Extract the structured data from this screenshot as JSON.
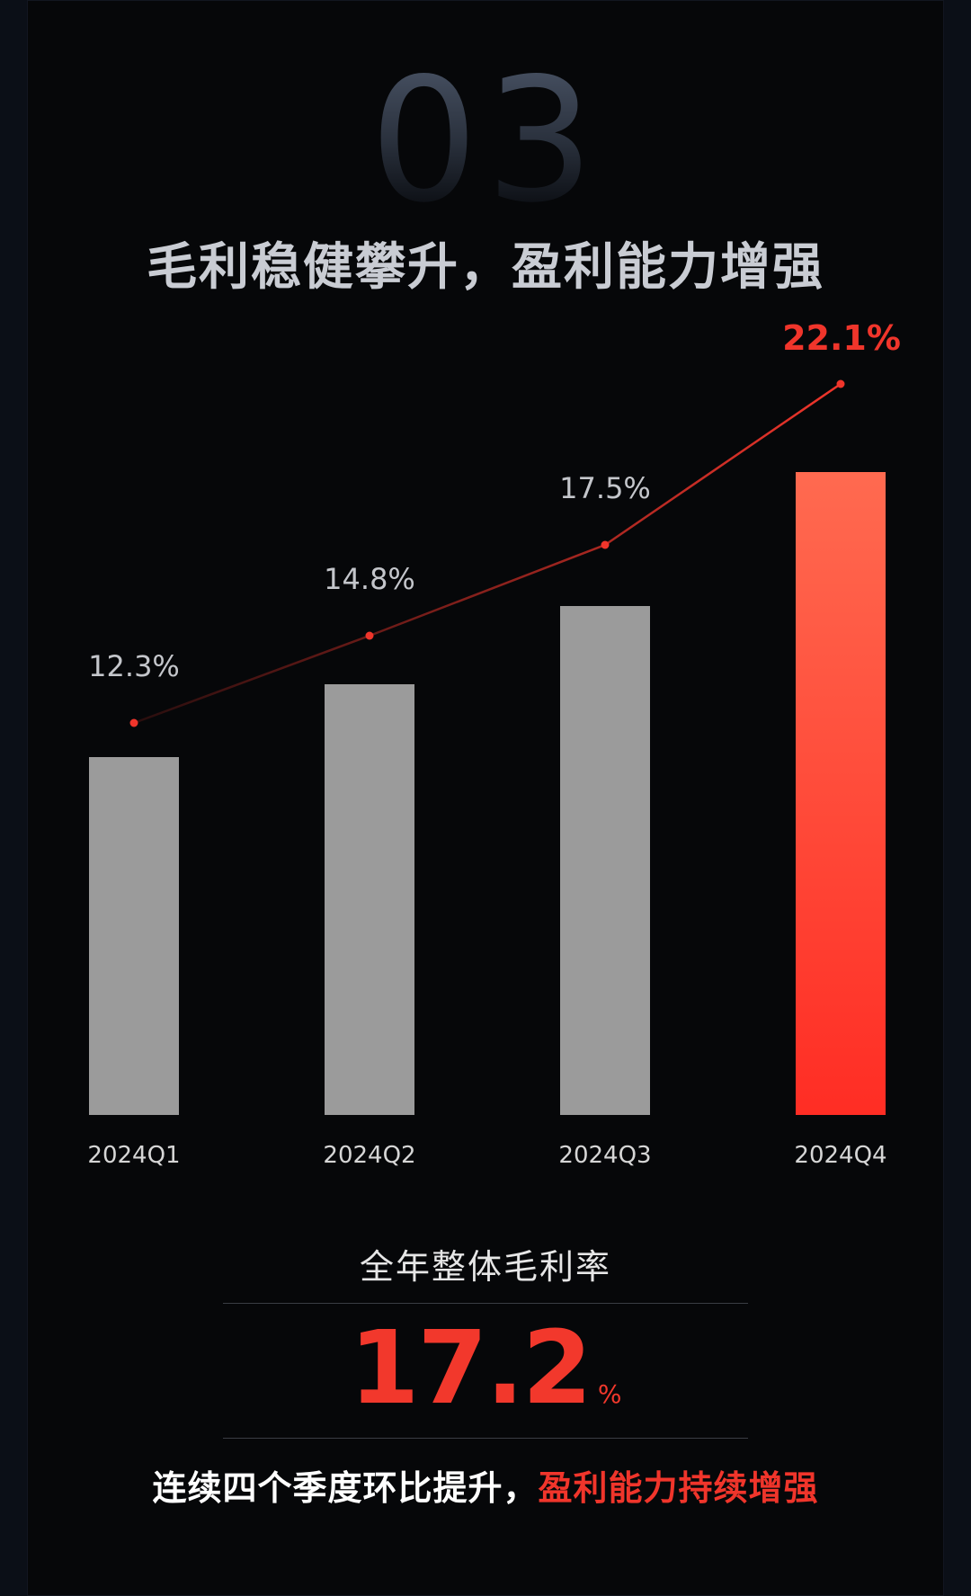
{
  "section": {
    "number": "03",
    "headline": "毛利稳健攀升，盈利能力增强"
  },
  "chart_data": {
    "type": "bar",
    "categories": [
      "2024Q1",
      "2024Q2",
      "2024Q3",
      "2024Q4"
    ],
    "values": [
      12.3,
      14.8,
      17.5,
      22.1
    ],
    "value_labels": [
      "12.3%",
      "14.8%",
      "17.5%",
      "22.1%"
    ],
    "unit": "%",
    "overlay_line": true,
    "colors": {
      "bar_default": "#9b9b9b",
      "bar_highlight_top": "#ff6a50",
      "bar_highlight_bottom": "#ff2d24",
      "line": "#f0352b",
      "label_default": "#c4c6cb",
      "label_highlight": "#f0352b",
      "category_label": "#d6d6d6"
    },
    "highlight_index": 3
  },
  "summary": {
    "label": "全年整体毛利率",
    "value": "17.2",
    "unit": "%"
  },
  "conclusion": {
    "prefix": "连续四个季度环比提升，",
    "accent": "盈利能力持续增强"
  }
}
